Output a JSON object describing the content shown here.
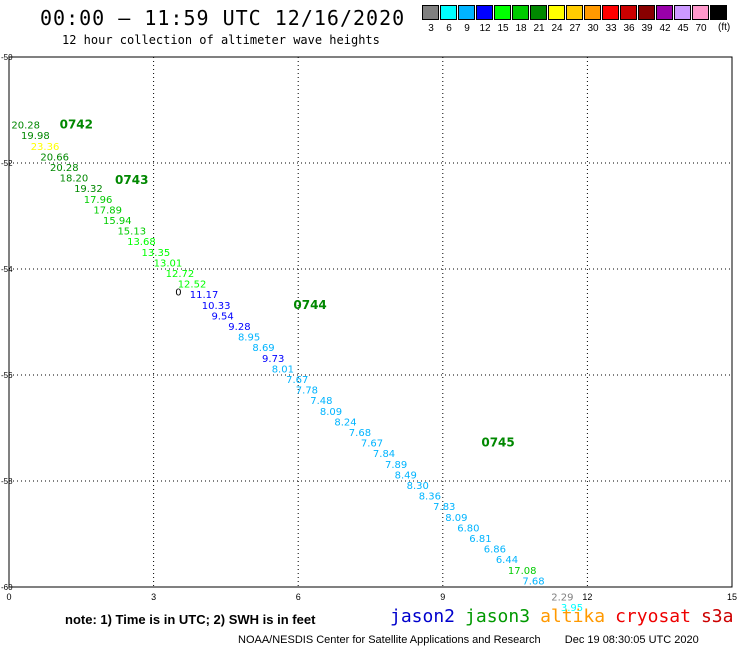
{
  "header": {
    "title": "00:00 – 11:59 UTC 12/16/2020",
    "subtitle": "12 hour collection of altimeter wave heights"
  },
  "color_scale": {
    "units": "(ft)",
    "entries": [
      {
        "label": "3",
        "color": "#808080"
      },
      {
        "label": "6",
        "color": "#00ffff"
      },
      {
        "label": "9",
        "color": "#00b4ff"
      },
      {
        "label": "12",
        "color": "#0000ff"
      },
      {
        "label": "15",
        "color": "#00ff00"
      },
      {
        "label": "18",
        "color": "#00cc00"
      },
      {
        "label": "21",
        "color": "#008800"
      },
      {
        "label": "24",
        "color": "#ffff00"
      },
      {
        "label": "27",
        "color": "#ffcc00"
      },
      {
        "label": "30",
        "color": "#ff9900"
      },
      {
        "label": "33",
        "color": "#ff0000"
      },
      {
        "label": "36",
        "color": "#cc0000"
      },
      {
        "label": "39",
        "color": "#880000"
      },
      {
        "label": "42",
        "color": "#9900aa"
      },
      {
        "label": "45",
        "color": "#cc99ff"
      },
      {
        "label": "70",
        "color": "#ff99cc"
      },
      {
        "label": "",
        "color": "#000000"
      }
    ]
  },
  "axes": {
    "x_ticks": [
      "0",
      "3",
      "6",
      "9",
      "12",
      "15"
    ],
    "y_ticks": [
      "-50",
      "-52",
      "-54",
      "-56",
      "-58",
      "-60"
    ],
    "x_range": [
      0,
      15
    ],
    "y_range": [
      -60,
      -50
    ]
  },
  "times": [
    {
      "label": "0742",
      "lon": 1.05,
      "lat": -51.35
    },
    {
      "label": "0743",
      "lon": 2.2,
      "lat": -52.4
    },
    {
      "label": "0744",
      "lon": 5.9,
      "lat": -54.75
    },
    {
      "label": "0745",
      "lon": 9.8,
      "lat": -57.35
    }
  ],
  "stray_label": {
    "text": "0",
    "lon": 3.45,
    "lat": -54.5
  },
  "chart_data": {
    "type": "scatter",
    "title": "00:00 – 11:59 UTC 12/16/2020",
    "subtitle": "12 hour collection of altimeter wave heights",
    "xlim": [
      0,
      15
    ],
    "ylim": [
      -60,
      -50
    ],
    "grid": true,
    "units": "ft",
    "points": [
      {
        "v": "20.28",
        "lon": 0.05,
        "lat": -51.35,
        "c": "#008800"
      },
      {
        "v": "19.98",
        "lon": 0.25,
        "lat": -51.55,
        "c": "#008800"
      },
      {
        "v": "23.36",
        "lon": 0.45,
        "lat": -51.75,
        "c": "#ffff00"
      },
      {
        "v": "20.66",
        "lon": 0.65,
        "lat": -51.95,
        "c": "#008800"
      },
      {
        "v": "20.28",
        "lon": 0.85,
        "lat": -52.15,
        "c": "#008800"
      },
      {
        "v": "18.20",
        "lon": 1.05,
        "lat": -52.35,
        "c": "#008800"
      },
      {
        "v": "19.32",
        "lon": 1.35,
        "lat": -52.55,
        "c": "#008800"
      },
      {
        "v": "17.96",
        "lon": 1.55,
        "lat": -52.75,
        "c": "#00cc00"
      },
      {
        "v": "17.89",
        "lon": 1.75,
        "lat": -52.95,
        "c": "#00cc00"
      },
      {
        "v": "15.94",
        "lon": 1.95,
        "lat": -53.15,
        "c": "#00cc00"
      },
      {
        "v": "15.13",
        "lon": 2.25,
        "lat": -53.35,
        "c": "#00cc00"
      },
      {
        "v": "13.68",
        "lon": 2.45,
        "lat": -53.55,
        "c": "#00ff00"
      },
      {
        "v": "13.35",
        "lon": 2.75,
        "lat": -53.75,
        "c": "#00ff00"
      },
      {
        "v": "13.01",
        "lon": 3.0,
        "lat": -53.95,
        "c": "#00ff00"
      },
      {
        "v": "12.72",
        "lon": 3.25,
        "lat": -54.15,
        "c": "#00ff00"
      },
      {
        "v": "12.52",
        "lon": 3.5,
        "lat": -54.35,
        "c": "#00ff00"
      },
      {
        "v": "11.17",
        "lon": 3.75,
        "lat": -54.55,
        "c": "#0000ff"
      },
      {
        "v": "10.33",
        "lon": 4.0,
        "lat": -54.75,
        "c": "#0000ff"
      },
      {
        "v": "9.54",
        "lon": 4.2,
        "lat": -54.95,
        "c": "#0000ff"
      },
      {
        "v": "9.28",
        "lon": 4.55,
        "lat": -55.15,
        "c": "#0000ff"
      },
      {
        "v": "8.95",
        "lon": 4.75,
        "lat": -55.35,
        "c": "#00b4ff"
      },
      {
        "v": "8.69",
        "lon": 5.05,
        "lat": -55.55,
        "c": "#00b4ff"
      },
      {
        "v": "9.73",
        "lon": 5.25,
        "lat": -55.75,
        "c": "#0000ff"
      },
      {
        "v": "8.01",
        "lon": 5.45,
        "lat": -55.95,
        "c": "#00b4ff"
      },
      {
        "v": "7.67",
        "lon": 5.75,
        "lat": -56.15,
        "c": "#00b4ff"
      },
      {
        "v": "7.78",
        "lon": 5.95,
        "lat": -56.35,
        "c": "#00b4ff"
      },
      {
        "v": "7.48",
        "lon": 6.25,
        "lat": -56.55,
        "c": "#00b4ff"
      },
      {
        "v": "8.09",
        "lon": 6.45,
        "lat": -56.75,
        "c": "#00b4ff"
      },
      {
        "v": "8.24",
        "lon": 6.75,
        "lat": -56.95,
        "c": "#00b4ff"
      },
      {
        "v": "7.68",
        "lon": 7.05,
        "lat": -57.15,
        "c": "#00b4ff"
      },
      {
        "v": "7.67",
        "lon": 7.3,
        "lat": -57.35,
        "c": "#00b4ff"
      },
      {
        "v": "7.84",
        "lon": 7.55,
        "lat": -57.55,
        "c": "#00b4ff"
      },
      {
        "v": "7.89",
        "lon": 7.8,
        "lat": -57.75,
        "c": "#00b4ff"
      },
      {
        "v": "8.49",
        "lon": 8.0,
        "lat": -57.95,
        "c": "#00b4ff"
      },
      {
        "v": "8.30",
        "lon": 8.25,
        "lat": -58.15,
        "c": "#00b4ff"
      },
      {
        "v": "8.36",
        "lon": 8.5,
        "lat": -58.35,
        "c": "#00b4ff"
      },
      {
        "v": "7.83",
        "lon": 8.8,
        "lat": -58.55,
        "c": "#00b4ff"
      },
      {
        "v": "8.09",
        "lon": 9.05,
        "lat": -58.75,
        "c": "#00b4ff"
      },
      {
        "v": "6.80",
        "lon": 9.3,
        "lat": -58.95,
        "c": "#00b4ff"
      },
      {
        "v": "6.81",
        "lon": 9.55,
        "lat": -59.15,
        "c": "#00b4ff"
      },
      {
        "v": "6.86",
        "lon": 9.85,
        "lat": -59.35,
        "c": "#00b4ff"
      },
      {
        "v": "6.44",
        "lon": 10.1,
        "lat": -59.55,
        "c": "#00b4ff"
      },
      {
        "v": "17.08",
        "lon": 10.35,
        "lat": -59.75,
        "c": "#00cc00"
      },
      {
        "v": "7.68",
        "lon": 10.65,
        "lat": -59.95,
        "c": "#00b4ff"
      },
      {
        "v": "2.29",
        "lon": 11.25,
        "lat": -60.25,
        "c": "#808080"
      },
      {
        "v": "3.95",
        "lon": 11.45,
        "lat": -60.45,
        "c": "#00ffff"
      }
    ]
  },
  "note": "note:  1) Time is in UTC;  2) SWH is in feet",
  "missions": [
    {
      "label": "jason2",
      "color": "#0000cc"
    },
    {
      "label": "jason3",
      "color": "#009900"
    },
    {
      "label": "altika",
      "color": "#ff9900"
    },
    {
      "label": "cryosat",
      "color": "#ee0000"
    },
    {
      "label": "s3a",
      "color": "#cc0000"
    }
  ],
  "footer": {
    "credit": "NOAA/NESDIS Center for Satellite Applications and Research",
    "timestamp": "Dec 19 08:30:05 UTC 2020"
  }
}
